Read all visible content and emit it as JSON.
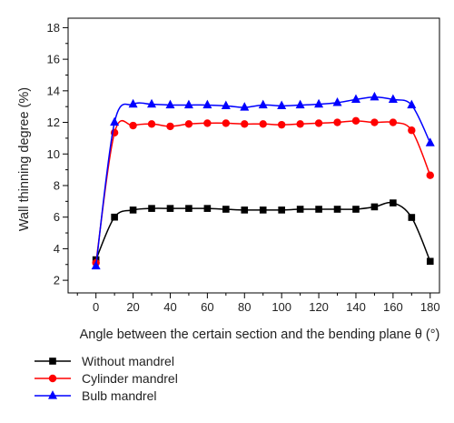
{
  "chart_data": {
    "type": "line",
    "xlabel": "Angle between the certain section and the bending plane θ (°)",
    "ylabel": "Wall thinning degree (%)",
    "xlim": [
      -15,
      185
    ],
    "ylim": [
      1.2,
      18.6
    ],
    "xticks": [
      0,
      20,
      40,
      60,
      80,
      100,
      120,
      140,
      160,
      180
    ],
    "yticks": [
      2,
      4,
      6,
      8,
      10,
      12,
      14,
      16,
      18
    ],
    "x": [
      0,
      10,
      20,
      30,
      40,
      50,
      60,
      70,
      80,
      90,
      100,
      110,
      120,
      130,
      140,
      150,
      160,
      170,
      180
    ],
    "grid": false,
    "legend_position": "bottom-left, below plot",
    "series": [
      {
        "name": "Without mandrel",
        "color": "#000000",
        "marker": "square",
        "values": [
          3.3,
          6.0,
          6.45,
          6.55,
          6.55,
          6.55,
          6.55,
          6.5,
          6.45,
          6.45,
          6.45,
          6.5,
          6.5,
          6.5,
          6.5,
          6.65,
          6.9,
          5.98,
          3.2
        ]
      },
      {
        "name": "Cylinder mandrel",
        "color": "#ff0000",
        "marker": "circle",
        "values": [
          3.1,
          11.35,
          11.8,
          11.9,
          11.75,
          11.9,
          11.95,
          11.95,
          11.9,
          11.9,
          11.85,
          11.9,
          11.95,
          12.0,
          12.1,
          12.0,
          12.0,
          11.5,
          8.65
        ]
      },
      {
        "name": "Bulb mandrel",
        "color": "#0000ff",
        "marker": "triangle",
        "values": [
          2.9,
          12.0,
          13.15,
          13.15,
          13.1,
          13.1,
          13.1,
          13.05,
          12.95,
          13.1,
          13.05,
          13.1,
          13.15,
          13.25,
          13.45,
          13.6,
          13.45,
          13.1,
          10.7
        ]
      }
    ]
  }
}
